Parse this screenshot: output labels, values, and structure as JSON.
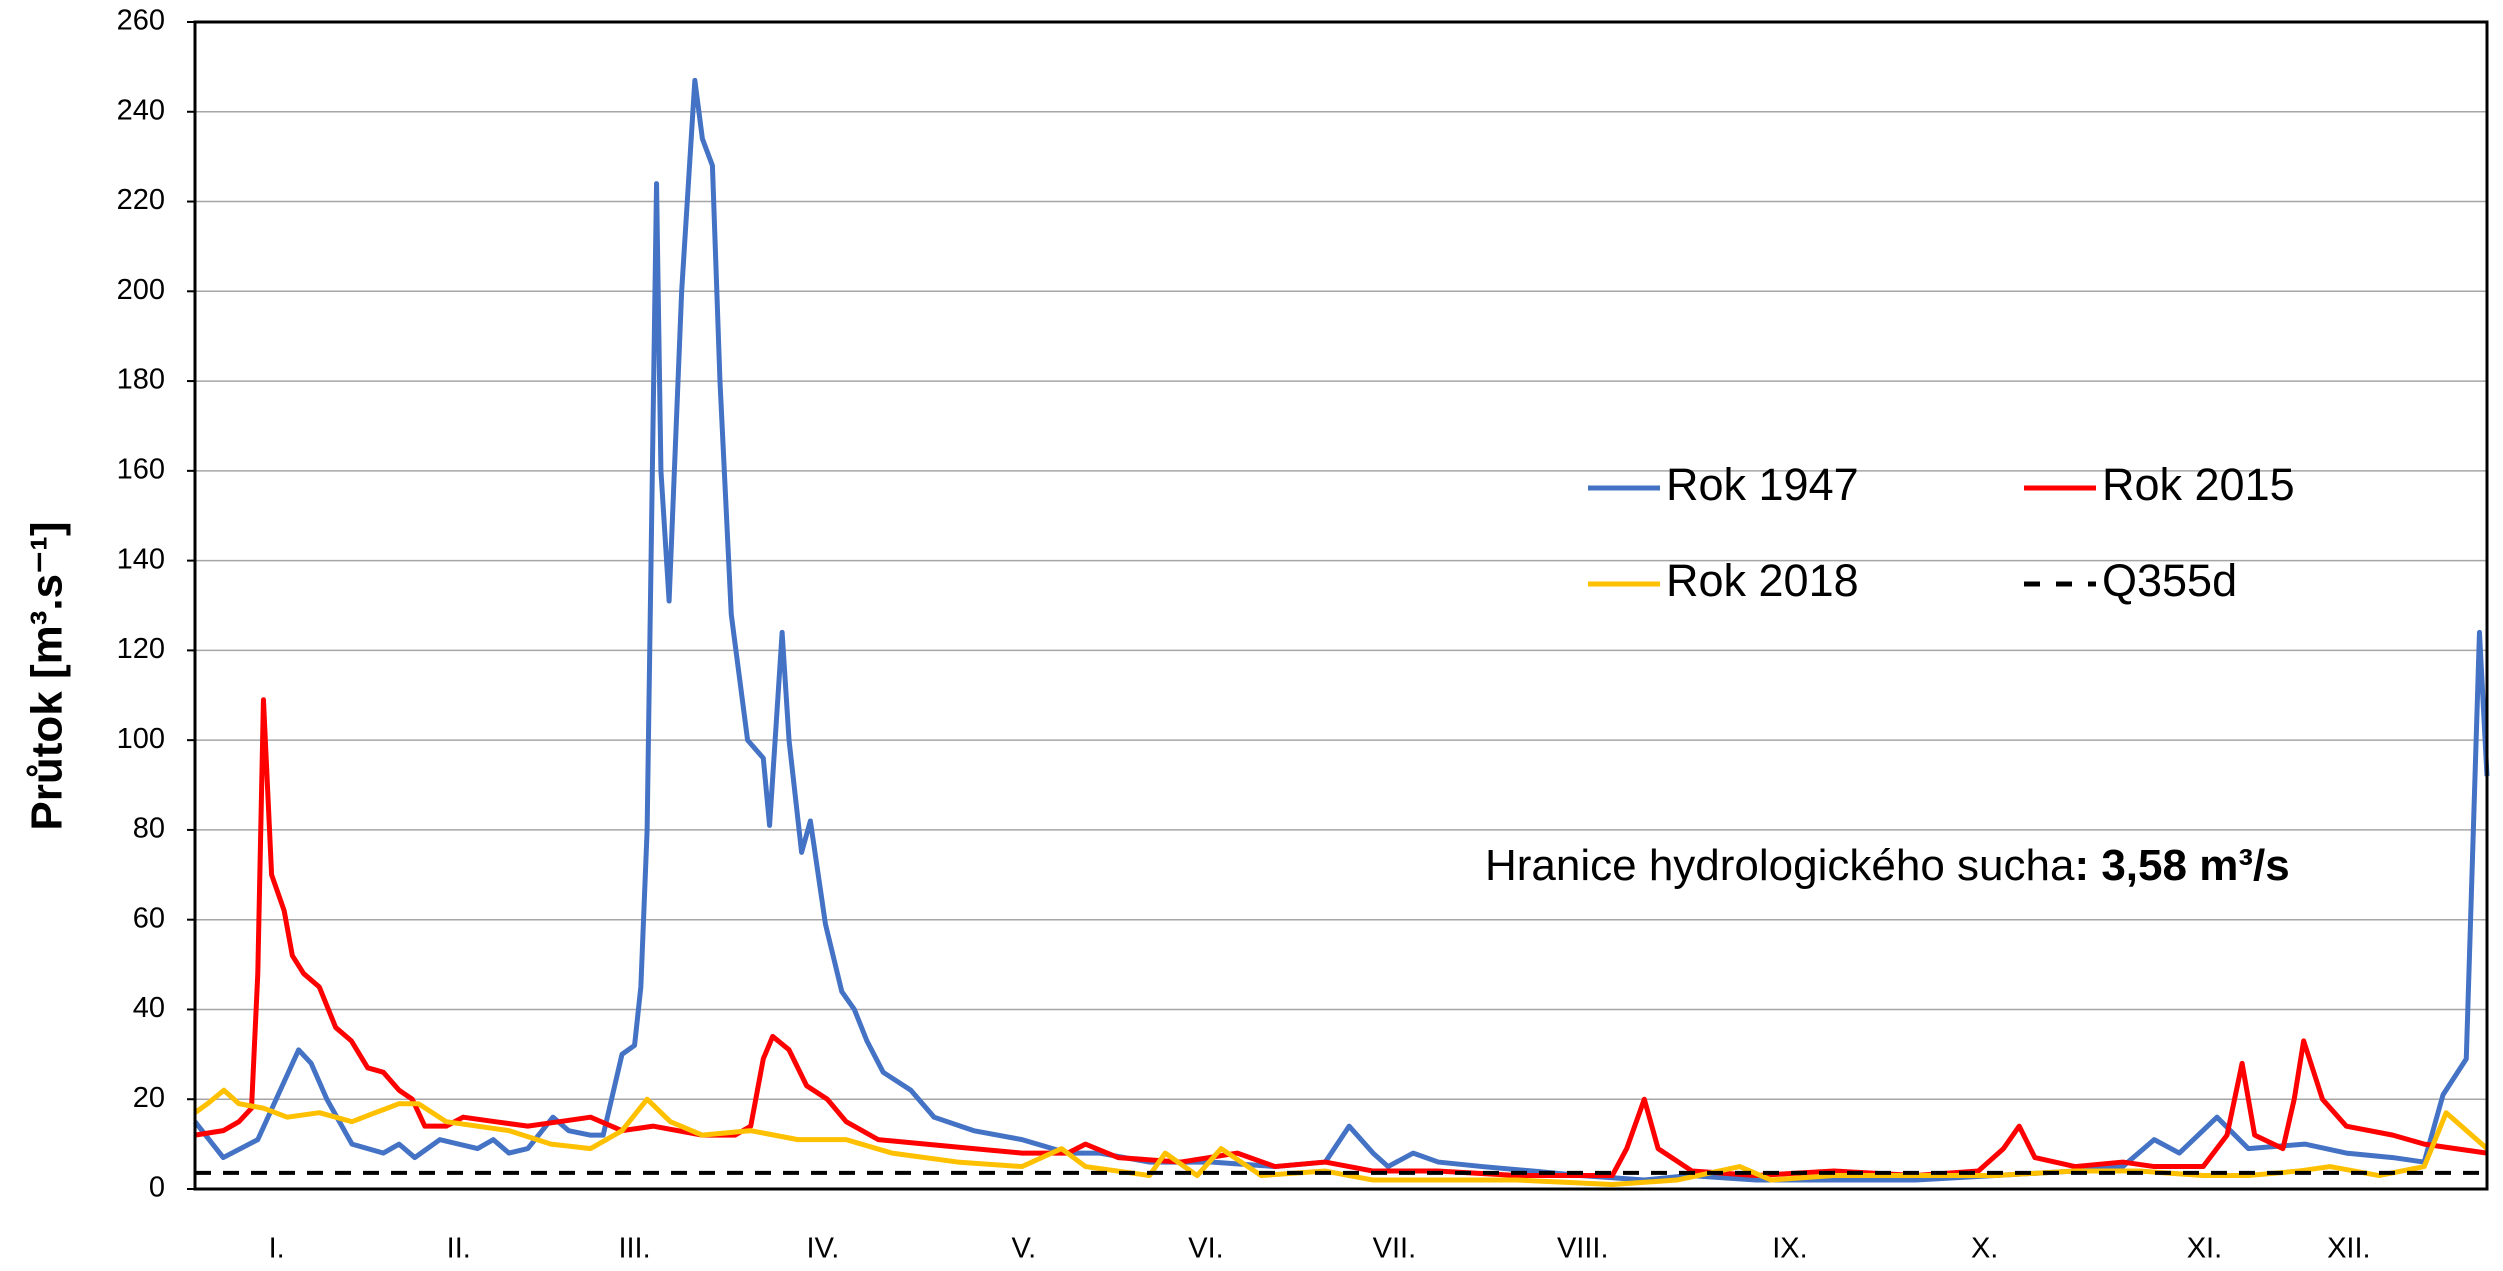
{
  "chart_data": {
    "type": "line",
    "ylabel": "Průtok  [m³.s⁻¹]",
    "xlim": [
      0,
      365
    ],
    "ylim": [
      0,
      260
    ],
    "yticks": [
      0,
      20,
      40,
      60,
      80,
      100,
      120,
      140,
      160,
      180,
      200,
      220,
      240,
      260
    ],
    "xticks": [
      {
        "value": 13,
        "label": "I."
      },
      {
        "value": 42,
        "label": "II."
      },
      {
        "value": 70,
        "label": "III."
      },
      {
        "value": 100,
        "label": "IV."
      },
      {
        "value": 132,
        "label": "V."
      },
      {
        "value": 161,
        "label": "VI."
      },
      {
        "value": 191,
        "label": "VII."
      },
      {
        "value": 221,
        "label": "VIII."
      },
      {
        "value": 254,
        "label": "IX."
      },
      {
        "value": 285,
        "label": "X."
      },
      {
        "value": 320,
        "label": "XI."
      },
      {
        "value": 343,
        "label": "XII."
      }
    ],
    "grid": true,
    "series": [
      {
        "name": "Rok 1947",
        "color": "#4472c4",
        "x": [
          0,
          4.5,
          10,
          16.5,
          18.5,
          21,
          25,
          30,
          32.5,
          35,
          39,
          45,
          47.5,
          50,
          53,
          57,
          59.5,
          63,
          65,
          68,
          70,
          71,
          72,
          73.5,
          74.2,
          75.5,
          77.5,
          79.6,
          80.8,
          82.4,
          83.6,
          85.4,
          88,
          90.5,
          91.5,
          93.5,
          94.6,
          96.6,
          98,
          100.4,
          103,
          105,
          107,
          109.6,
          114,
          117.7,
          124,
          131.7,
          139,
          144,
          152,
          162,
          172,
          180,
          183.8,
          187.6,
          190,
          194,
          198,
          205,
          213,
          220.6,
          230.8,
          238,
          248.6,
          261,
          274,
          286.7,
          299.4,
          307,
          312,
          316,
          322,
          327,
          336,
          342.6,
          350,
          355,
          358,
          361.7,
          363.8,
          365
        ],
        "values": [
          15,
          7,
          11,
          31,
          28,
          20,
          10,
          8,
          10,
          7,
          11,
          9,
          11,
          8,
          9,
          16,
          13,
          12,
          12,
          30,
          32,
          45,
          80,
          224,
          160,
          131,
          200,
          247,
          234,
          228,
          180,
          128,
          100,
          96,
          81,
          124,
          100,
          75,
          82,
          59,
          44,
          40,
          33,
          26,
          22,
          16,
          13,
          11,
          8,
          8,
          6,
          6,
          5,
          6,
          14,
          8,
          5,
          8,
          6,
          5,
          4,
          3,
          2,
          3,
          2,
          2,
          2,
          3,
          4,
          5,
          11,
          8,
          16,
          9,
          10,
          8,
          7,
          6,
          21,
          29,
          124,
          92
        ]
      },
      {
        "name": "Rok 2015",
        "color": "#ff0000",
        "x": [
          0,
          4.5,
          7,
          9,
          10,
          10.9,
          12.2,
          14.2,
          15.5,
          17.3,
          19.8,
          22.4,
          24.9,
          27.5,
          30,
          32.5,
          34.6,
          36.6,
          40,
          42.7,
          47.8,
          53,
          58,
          63,
          68,
          73,
          80.8,
          86,
          88.5,
          90.5,
          92,
          94.6,
          97.4,
          100.7,
          103.7,
          108.8,
          116.4,
          124,
          131.7,
          139,
          141.8,
          147,
          157,
          166,
          172,
          180,
          187.6,
          197.8,
          210.5,
          225.7,
          228,
          230.8,
          233,
          238.4,
          248.6,
          261,
          274,
          284,
          288,
          290.5,
          293,
          299.4,
          307,
          312,
          319.8,
          323.6,
          326,
          328,
          332.5,
          334.3,
          335.8,
          338.8,
          342.6,
          350,
          355,
          365
        ],
        "values": [
          12,
          13,
          15,
          18,
          48,
          109,
          70,
          62,
          52,
          48,
          45,
          36,
          33,
          27,
          26,
          22,
          20,
          14,
          14,
          16,
          15,
          14,
          15,
          16,
          13,
          14,
          12,
          12,
          14,
          29,
          34,
          31,
          23,
          20,
          15,
          11,
          10,
          9,
          8,
          8,
          10,
          7,
          6,
          8,
          5,
          6,
          4,
          4,
          3,
          3,
          9,
          20,
          9,
          4,
          3,
          4,
          3,
          4,
          9,
          14,
          7,
          5,
          6,
          5,
          5,
          12,
          28,
          12,
          9,
          20,
          33,
          20,
          14,
          12,
          10,
          8
        ]
      },
      {
        "name": "Rok 2018",
        "color": "#ffc000",
        "x": [
          0,
          2,
          4.6,
          7,
          10.9,
          14.7,
          19.8,
          25,
          28.7,
          32.5,
          35.6,
          40,
          50,
          56.7,
          63,
          68,
          72,
          75.7,
          80.8,
          88.5,
          96,
          103.7,
          111,
          121.5,
          131.7,
          138,
          141.8,
          152,
          154.5,
          159.6,
          163.4,
          169.8,
          180,
          187.6,
          198,
          210.5,
          225.7,
          236,
          246,
          251,
          261,
          274,
          286.7,
          299.4,
          309.6,
          319.8,
          327,
          335,
          340,
          347.8,
          355,
          358.5,
          365
        ],
        "values": [
          17,
          19,
          22,
          19,
          18,
          16,
          17,
          15,
          17,
          19,
          19,
          15,
          13,
          10,
          9,
          13,
          20,
          15,
          12,
          13,
          11,
          11,
          8,
          6,
          5,
          9,
          5,
          3,
          8,
          3,
          9,
          3,
          4,
          2,
          2,
          2,
          1,
          2,
          5,
          2,
          3,
          3,
          3,
          4,
          4,
          3,
          3,
          4,
          5,
          3,
          5,
          17,
          9
        ]
      }
    ],
    "lines": [
      {
        "name": "Q355d",
        "color": "#000000",
        "value": 3.58
      }
    ],
    "annotation": {
      "text": "Hranice hydrologického sucha",
      "bold_text": ": 3,58 m³/s"
    }
  }
}
